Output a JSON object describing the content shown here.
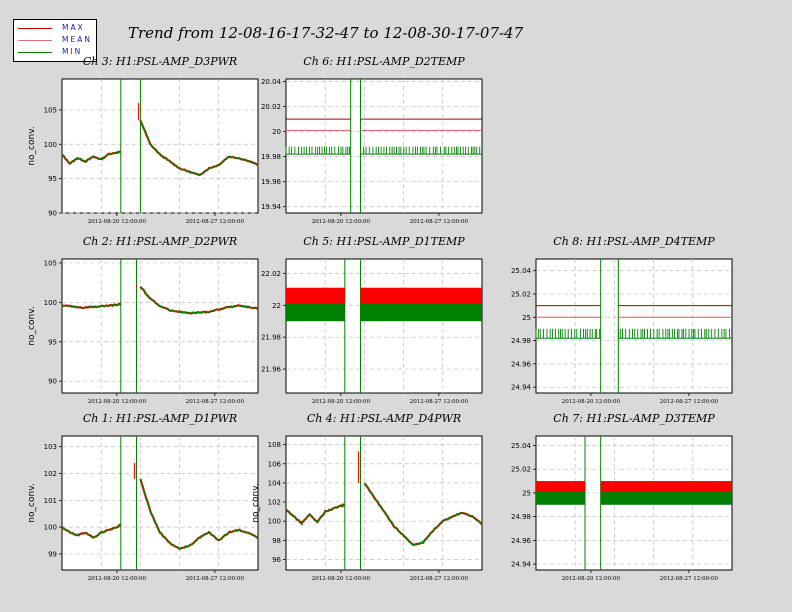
{
  "title": "Trend from 12-08-16-17-32-47 to 12-08-30-17-07-47",
  "legend": [
    {
      "label": "MAX",
      "color": "#cc0000"
    },
    {
      "label": "MEAN",
      "color": "#e07070"
    },
    {
      "label": "MIN",
      "color": "#008000"
    }
  ],
  "colors": {
    "max": "#ff0000",
    "mean": "#cc6666",
    "min": "#008000",
    "grid": "#bdbdbd",
    "background": "#d9d9d9"
  },
  "chart_data": [
    {
      "type": "line",
      "title": "Ch 3: H1:PSL-AMP_D3PWR",
      "ylabel": "no_conv.",
      "ylim": [
        90,
        109.5
      ],
      "yticks": [
        90,
        95,
        100,
        105
      ],
      "xticks": [
        "2012-08-20 12:00:00",
        "2012-08-27 12:00:00"
      ],
      "x": [
        0,
        0.04,
        0.08,
        0.12,
        0.16,
        0.2,
        0.24,
        0.28,
        0.3,
        0.33,
        0.36,
        0.4,
        0.45,
        0.5,
        0.55,
        0.6,
        0.65,
        0.7,
        0.75,
        0.8,
        0.85,
        0.9,
        0.95,
        1.0
      ],
      "series": [
        {
          "values": [
            98.5,
            97.2,
            98.0,
            97.5,
            98.2,
            97.8,
            98.6,
            98.8,
            98.9,
            null,
            null,
            103.5,
            100.0,
            98.5,
            97.5,
            96.5,
            96.0,
            95.5,
            96.5,
            97.0,
            98.2,
            98.0,
            97.6,
            97.0
          ]
        }
      ],
      "dropout": [
        0.3,
        0.4
      ],
      "spike": 0.39,
      "spike_value": 106
    },
    {
      "type": "line",
      "title": "Ch 6: H1:PSL-AMP_D2TEMP",
      "ylabel": "",
      "ylim": [
        19.935,
        20.042
      ],
      "yticks": [
        19.94,
        19.96,
        19.98,
        20,
        20.02,
        20.04
      ],
      "yticklabels": [
        "19.94",
        "19.96",
        "19.98",
        "20",
        "20.02",
        "20.04"
      ],
      "xticks": [
        "2012-08-20 12:00:00",
        "2012-08-27 12:00:00"
      ],
      "levels": {
        "max": 20.01,
        "mean": 20.001,
        "min": 19.985
      },
      "min_band": [
        19.982,
        19.988
      ],
      "dropout": [
        0.33,
        0.38
      ]
    },
    {
      "type": "line",
      "title": "Ch 2: H1:PSL-AMP_D2PWR",
      "ylabel": "no_conv.",
      "ylim": [
        88.5,
        105.5
      ],
      "yticks": [
        90,
        95,
        100,
        105
      ],
      "xticks": [
        "2012-08-20 12:00:00",
        "2012-08-27 12:00:00"
      ],
      "x": [
        0,
        0.05,
        0.1,
        0.15,
        0.2,
        0.25,
        0.28,
        0.3,
        0.33,
        0.36,
        0.4,
        0.45,
        0.5,
        0.55,
        0.6,
        0.65,
        0.7,
        0.75,
        0.8,
        0.85,
        0.9,
        0.95,
        1.0
      ],
      "series": [
        {
          "values": [
            99.6,
            99.5,
            99.3,
            99.4,
            99.5,
            99.6,
            99.7,
            99.8,
            null,
            null,
            102.0,
            100.5,
            99.5,
            99.0,
            98.8,
            98.6,
            98.7,
            98.8,
            99.1,
            99.4,
            99.6,
            99.4,
            99.2
          ]
        }
      ],
      "dropout": [
        0.3,
        0.38
      ],
      "spike": 0.38,
      "spike_value": 102.3
    },
    {
      "type": "line",
      "title": "Ch 5: H1:PSL-AMP_D1TEMP",
      "ylabel": "",
      "ylim": [
        21.945,
        22.029
      ],
      "yticks": [
        21.96,
        21.98,
        22,
        22.02
      ],
      "yticklabels": [
        "21.96",
        "21.98",
        "22",
        "22.02"
      ],
      "xticks": [
        "2012-08-20 12:00:00",
        "2012-08-27 12:00:00"
      ],
      "levels": {
        "max": 22.005,
        "mean": 22.0,
        "min": 21.995
      },
      "max_band": [
        21.999,
        22.011
      ],
      "min_band": [
        21.99,
        22.001
      ],
      "dropout": [
        0.3,
        0.38
      ]
    },
    {
      "type": "line",
      "title": "Ch 8: H1:PSL-AMP_D4TEMP",
      "ylabel": "",
      "ylim": [
        24.935,
        25.05
      ],
      "yticks": [
        24.94,
        24.96,
        24.98,
        25,
        25.02,
        25.04
      ],
      "yticklabels": [
        "24.94",
        "24.96",
        "24.98",
        "25",
        "25.02",
        "25.04"
      ],
      "xticks": [
        "2012-08-20 12:00:00",
        "2012-08-27 12:00:00"
      ],
      "levels": {
        "max": 25.01,
        "mean": 25.0,
        "min": 24.985
      },
      "min_band": [
        24.982,
        24.99
      ],
      "dropout": [
        0.33,
        0.42
      ]
    },
    {
      "type": "line",
      "title": "Ch 1: H1:PSL-AMP_D1PWR",
      "ylabel": "no_conv.",
      "ylim": [
        98.4,
        103.4
      ],
      "yticks": [
        99,
        100,
        101,
        102,
        103
      ],
      "xticks": [
        "2012-08-20 12:00:00",
        "2012-08-27 12:00:00"
      ],
      "x": [
        0,
        0.04,
        0.08,
        0.12,
        0.16,
        0.2,
        0.24,
        0.28,
        0.3,
        0.33,
        0.36,
        0.4,
        0.45,
        0.5,
        0.55,
        0.6,
        0.65,
        0.7,
        0.75,
        0.8,
        0.85,
        0.9,
        0.95,
        1.0
      ],
      "series": [
        {
          "values": [
            100.0,
            99.8,
            99.7,
            99.8,
            99.6,
            99.8,
            99.9,
            100.0,
            100.1,
            null,
            null,
            101.8,
            100.6,
            99.8,
            99.4,
            99.2,
            99.3,
            99.6,
            99.8,
            99.5,
            99.8,
            99.9,
            99.8,
            99.6
          ]
        }
      ],
      "dropout": [
        0.3,
        0.38
      ],
      "spike": 0.37,
      "spike_value": 102.4
    },
    {
      "type": "line",
      "title": "Ch 4: H1:PSL-AMP_D4PWR",
      "ylabel": "no_conv.",
      "ylim": [
        94.9,
        108.9
      ],
      "yticks": [
        96,
        98,
        100,
        102,
        104,
        106,
        108
      ],
      "xticks": [
        "2012-08-20 12:00:00",
        "2012-08-27 12:00:00"
      ],
      "x": [
        0,
        0.04,
        0.08,
        0.12,
        0.16,
        0.2,
        0.24,
        0.28,
        0.3,
        0.33,
        0.36,
        0.4,
        0.45,
        0.5,
        0.55,
        0.6,
        0.65,
        0.7,
        0.75,
        0.8,
        0.85,
        0.9,
        0.95,
        1.0
      ],
      "series": [
        {
          "values": [
            101.2,
            100.5,
            99.8,
            100.7,
            99.9,
            101.0,
            101.3,
            101.6,
            101.7,
            null,
            null,
            104.0,
            102.5,
            101.0,
            99.5,
            98.5,
            97.5,
            97.8,
            99.0,
            100.0,
            100.5,
            100.9,
            100.5,
            99.7
          ]
        }
      ],
      "dropout": [
        0.3,
        0.38
      ],
      "spike": 0.37,
      "spike_value": 107.3
    },
    {
      "type": "line",
      "title": "Ch 7: H1:PSL-AMP_D3TEMP",
      "ylabel": "",
      "ylim": [
        24.935,
        25.048
      ],
      "yticks": [
        24.94,
        24.96,
        24.98,
        25,
        25.02,
        25.04
      ],
      "yticklabels": [
        "24.94",
        "24.96",
        "24.98",
        "25",
        "25.02",
        "25.04"
      ],
      "xticks": [
        "2012-08-20 12:00:00",
        "2012-08-27 12:00:00"
      ],
      "levels": {
        "max": 25.005,
        "mean": 25.0,
        "min": 24.995
      },
      "max_band": [
        24.998,
        25.01
      ],
      "min_band": [
        24.99,
        25.001
      ],
      "dropout": [
        0.25,
        0.33
      ]
    }
  ]
}
